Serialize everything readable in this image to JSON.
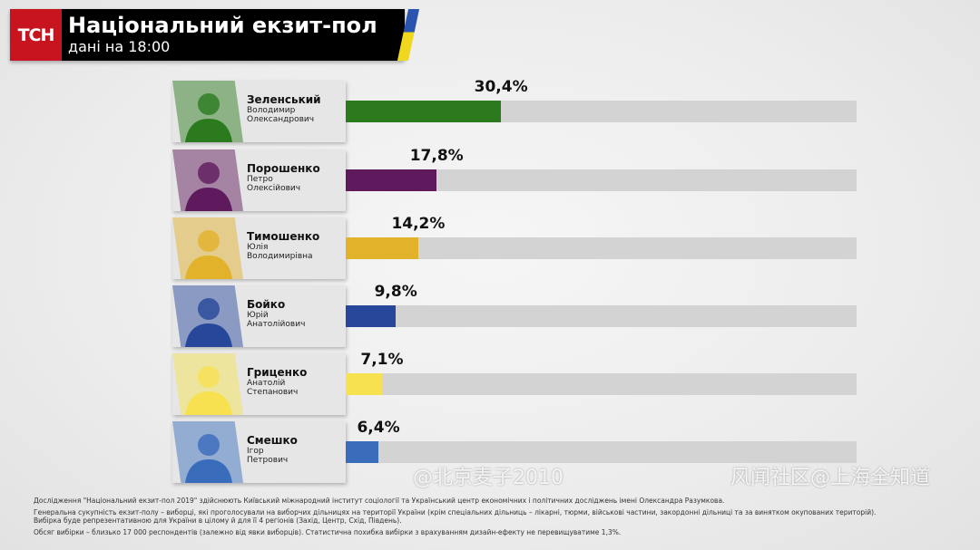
{
  "header": {
    "logo": "ТСН",
    "title": "Національний екзит-пол",
    "subtitle": "дані на 18:00"
  },
  "chart_data": {
    "type": "bar",
    "orientation": "horizontal",
    "xlim": [
      0,
      100
    ],
    "categories": [
      "Зеленський",
      "Порошенко",
      "Тимошенко",
      "Бойко",
      "Гриценко",
      "Смешко"
    ],
    "given_names": [
      "Володимир Олександрович",
      "Петро Олексійович",
      "Юлія Володимирівна",
      "Юрій Анатолійович",
      "Анатолій Степанович",
      "Ігор Петрович"
    ],
    "values": [
      30.4,
      17.8,
      14.2,
      9.8,
      7.1,
      6.4
    ],
    "labels": [
      "30,4%",
      "17,8%",
      "14,2%",
      "9,8%",
      "7,1%",
      "6,4%"
    ],
    "colors": [
      "#2b7a1e",
      "#5e1a5c",
      "#e2b22a",
      "#26479a",
      "#f7e150",
      "#3a6cbc"
    ],
    "track_color": "#d3d3d3"
  },
  "candidates": [
    {
      "surname": "Зеленський",
      "line1": "Володимир",
      "line2": "Олександрович"
    },
    {
      "surname": "Порошенко",
      "line1": "Петро",
      "line2": "Олексійович"
    },
    {
      "surname": "Тимошенко",
      "line1": "Юлія",
      "line2": "Володимирівна"
    },
    {
      "surname": "Бойко",
      "line1": "Юрій",
      "line2": "Анатолійович"
    },
    {
      "surname": "Гриценко",
      "line1": "Анатолій",
      "line2": "Степанович"
    },
    {
      "surname": "Смешко",
      "line1": "Ігор",
      "line2": "Петрович"
    }
  ],
  "footer": {
    "p1": "Дослідження \"Національний екзит-пол 2019\" здійснюють Київський міжнародний інститут соціології та Український центр економічних і політичних досліджень імені Олександра Разумкова.",
    "p2a": "Генеральна сукупність екзит-полу – виборці, які проголосували на виборчих дільницях на території України (крім спеціальних дільниць – лікарні, тюрми, військові частини, закордонні дільниці та за винятком окупованих територій).",
    "p2b": "Вибірка буде репрезентативною для України в цілому й для її 4 регіонів (Захід, Центр, Схід, Південь).",
    "p3": "Обсяг вибірки – близько 17 000 респондентів (залежно від явки виборців). Статистична похибка вибірки з врахуванням дизайн-ефекту не перевищуватиме 1,3%."
  },
  "watermarks": [
    "@北京麦子2010",
    "风闻社区@上海全知道"
  ]
}
